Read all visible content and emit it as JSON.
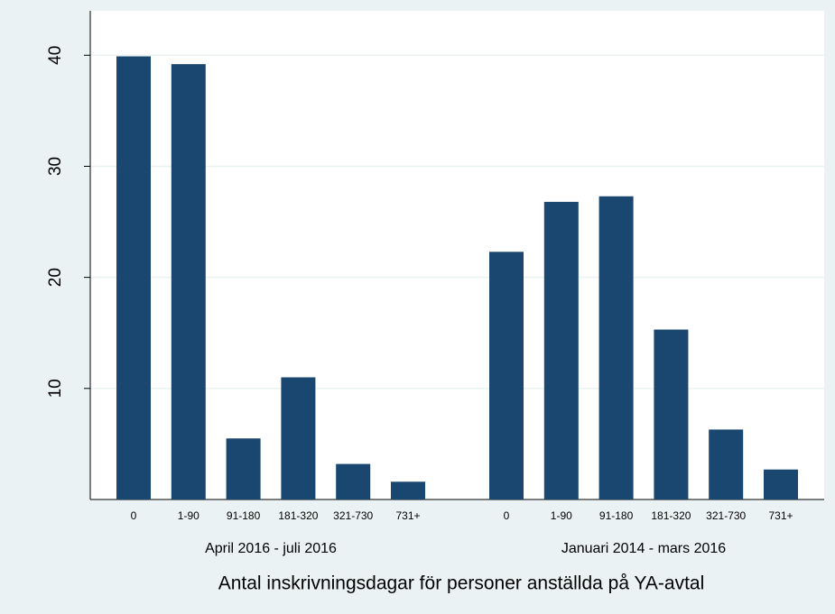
{
  "chart_data": {
    "type": "bar",
    "x_title": "Antal inskrivningsdagar för personer anställda på YA-avtal",
    "groups": [
      {
        "label": "April 2016 - juli 2016",
        "categories": [
          "0",
          "1-90",
          "91-180",
          "181-320",
          "321-730",
          "731+"
        ],
        "values": [
          39.9,
          39.2,
          5.5,
          11.0,
          3.2,
          1.6
        ]
      },
      {
        "label": "Januari 2014 - mars 2016",
        "categories": [
          "0",
          "1-90",
          "91-180",
          "181-320",
          "321-730",
          "731+"
        ],
        "values": [
          22.3,
          26.8,
          27.3,
          15.3,
          6.3,
          2.7
        ]
      }
    ],
    "color": "#1a476f",
    "ylim": [
      0,
      44
    ],
    "yticks": [
      10,
      20,
      30,
      40
    ],
    "grid": true
  }
}
